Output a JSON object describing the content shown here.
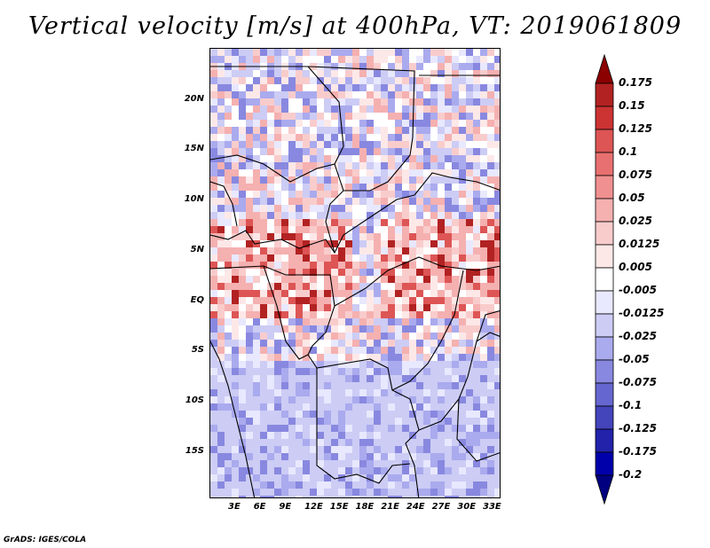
{
  "title": "Vertical velocity [m/s] at 400hPa, VT: 2019061809",
  "credit": "GrADS: IGES/COLA",
  "lat_labels": [
    "20N",
    "15N",
    "10N",
    "5N",
    "EQ",
    "5S",
    "10S",
    "15S"
  ],
  "lon_labels": [
    "3E",
    "6E",
    "9E",
    "12E",
    "15E",
    "18E",
    "21E",
    "24E",
    "27E",
    "30E",
    "33E"
  ],
  "colorbar": {
    "labels": [
      "0.175",
      "0.15",
      "0.125",
      "0.1",
      "0.075",
      "0.05",
      "0.025",
      "0.0125",
      "0.005",
      "-0.005",
      "-0.0125",
      "-0.025",
      "-0.05",
      "-0.075",
      "-0.1",
      "-0.125",
      "-0.175",
      "-0.2"
    ],
    "colors": [
      "#8b0000",
      "#b22222",
      "#cc3333",
      "#dd5555",
      "#e87070",
      "#f09090",
      "#f5b0b0",
      "#f9cccc",
      "#fde8e8",
      "#ffffff",
      "#e8e8ff",
      "#ccccf5",
      "#aaaaee",
      "#8888e0",
      "#6666d0",
      "#4444bb",
      "#2222aa",
      "#0000aa",
      "#000080"
    ]
  }
}
